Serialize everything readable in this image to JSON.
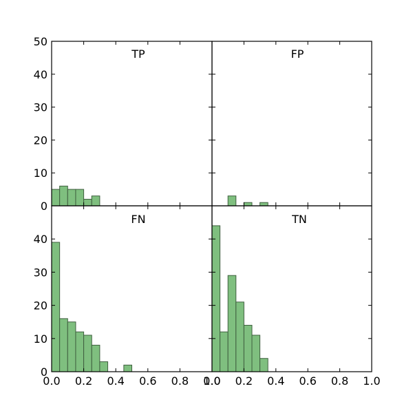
{
  "chart_data": [
    {
      "type": "bar",
      "title": "TP",
      "bin_width": 0.05,
      "bin_starts": [
        0.0,
        0.05,
        0.1,
        0.15,
        0.2,
        0.25
      ],
      "values": [
        5,
        6,
        5,
        5,
        2,
        3
      ],
      "xlim": [
        0,
        1
      ],
      "ylim": [
        0,
        50
      ],
      "yticks": [
        "0",
        "10",
        "20",
        "30",
        "40",
        "50"
      ],
      "xticks": [],
      "bar_color": "#7fbf7f",
      "edge_color": "#3f5f3f"
    },
    {
      "type": "bar",
      "title": "FP",
      "bin_width": 0.05,
      "bin_starts": [
        0.1,
        0.2,
        0.3
      ],
      "values": [
        3,
        1,
        1
      ],
      "xlim": [
        0,
        1
      ],
      "ylim": [
        0,
        50
      ],
      "yticks": [],
      "xticks": [],
      "bar_color": "#7fbf7f",
      "edge_color": "#3f5f3f"
    },
    {
      "type": "bar",
      "title": "FN",
      "bin_width": 0.05,
      "bin_starts": [
        0.0,
        0.05,
        0.1,
        0.15,
        0.2,
        0.25,
        0.3,
        0.45
      ],
      "values": [
        39,
        16,
        15,
        12,
        11,
        8,
        3,
        2
      ],
      "xlim": [
        0,
        1
      ],
      "ylim": [
        0,
        50
      ],
      "yticks": [
        "0",
        "10",
        "20",
        "30",
        "40"
      ],
      "xticks": [
        "0.0",
        "0.2",
        "0.4",
        "0.6",
        "0.8",
        "1.0"
      ],
      "bar_color": "#7fbf7f",
      "edge_color": "#3f5f3f"
    },
    {
      "type": "bar",
      "title": "TN",
      "bin_width": 0.05,
      "bin_starts": [
        0.0,
        0.05,
        0.1,
        0.15,
        0.2,
        0.25,
        0.3
      ],
      "values": [
        44,
        12,
        29,
        21,
        14,
        11,
        4
      ],
      "xlim": [
        0,
        1
      ],
      "ylim": [
        0,
        50
      ],
      "yticks": [],
      "xticks": [
        "0.0",
        "0.2",
        "0.4",
        "0.6",
        "0.8",
        "1.0"
      ],
      "bar_color": "#7fbf7f",
      "edge_color": "#3f5f3f"
    }
  ]
}
